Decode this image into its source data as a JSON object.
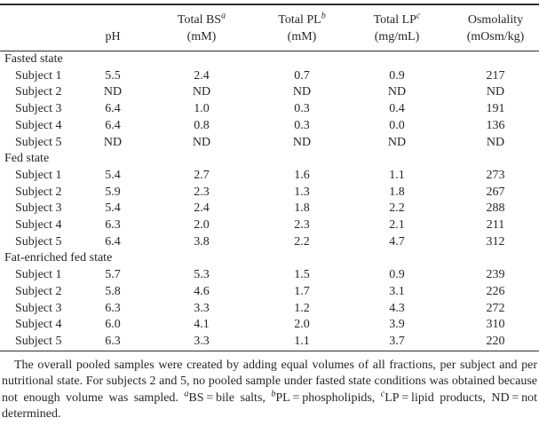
{
  "table": {
    "header": {
      "ph": "pH",
      "bs": {
        "name": "Total BS",
        "sup": "a",
        "unit": "(mM)"
      },
      "pl": {
        "name": "Total PL",
        "sup": "b",
        "unit": "(mM)"
      },
      "lp": {
        "name": "Total LP",
        "sup": "c",
        "unit": "(mg/mL)"
      },
      "osm": {
        "name": "Osmolality",
        "unit": "(mOsm/kg)"
      }
    },
    "sections": [
      {
        "name": "Fasted state",
        "rows": [
          {
            "label": "Subject 1",
            "values": [
              "5.5",
              "2.4",
              "0.7",
              "0.9",
              "217"
            ]
          },
          {
            "label": "Subject 2",
            "values": [
              "ND",
              "ND",
              "ND",
              "ND",
              "ND"
            ]
          },
          {
            "label": "Subject 3",
            "values": [
              "6.4",
              "1.0",
              "0.3",
              "0.4",
              "191"
            ]
          },
          {
            "label": "Subject 4",
            "values": [
              "6.4",
              "0.8",
              "0.3",
              "0.0",
              "136"
            ]
          },
          {
            "label": "Subject 5",
            "values": [
              "ND",
              "ND",
              "ND",
              "ND",
              "ND"
            ]
          }
        ]
      },
      {
        "name": "Fed state",
        "rows": [
          {
            "label": "Subject 1",
            "values": [
              "5.4",
              "2.7",
              "1.6",
              "1.1",
              "273"
            ]
          },
          {
            "label": "Subject 2",
            "values": [
              "5.9",
              "2.3",
              "1.3",
              "1.8",
              "267"
            ]
          },
          {
            "label": "Subject 3",
            "values": [
              "5.4",
              "2.4",
              "1.8",
              "2.2",
              "288"
            ]
          },
          {
            "label": "Subject 4",
            "values": [
              "6.3",
              "2.0",
              "2.3",
              "2.1",
              "211"
            ]
          },
          {
            "label": "Subject 5",
            "values": [
              "6.4",
              "3.8",
              "2.2",
              "4.7",
              "312"
            ]
          }
        ]
      },
      {
        "name": "Fat-enriched fed state",
        "rows": [
          {
            "label": "Subject 1",
            "values": [
              "5.7",
              "5.3",
              "1.5",
              "0.9",
              "239"
            ]
          },
          {
            "label": "Subject 2",
            "values": [
              "5.8",
              "4.6",
              "1.7",
              "3.1",
              "226"
            ]
          },
          {
            "label": "Subject 3",
            "values": [
              "6.3",
              "3.3",
              "1.2",
              "4.3",
              "272"
            ]
          },
          {
            "label": "Subject 4",
            "values": [
              "6.0",
              "4.1",
              "2.0",
              "3.9",
              "310"
            ]
          },
          {
            "label": "Subject 5",
            "values": [
              "6.3",
              "3.3",
              "1.1",
              "3.7",
              "220"
            ]
          }
        ]
      }
    ],
    "chart_data": {
      "type": "table",
      "columns": [
        "",
        "pH",
        "Total BS (mM)",
        "Total PL (mM)",
        "Total LP (mg/mL)",
        "Osmolality (mOsm/kg)"
      ]
    }
  },
  "footnote": {
    "text_main": "The overall pooled samples were created by adding equal volumes of all fractions, per subject and per nutritional state. For subjects 2 and 5, no pooled sample under fasted state conditions was obtained because not enough volume was sampled. ",
    "sup_a": "a",
    "seg_bs": "BS = bile salts, ",
    "sup_b": "b",
    "seg_pl": "PL = phospholipids, ",
    "sup_c": "c",
    "seg_lp": "LP = lipid products, ND = not determined."
  }
}
